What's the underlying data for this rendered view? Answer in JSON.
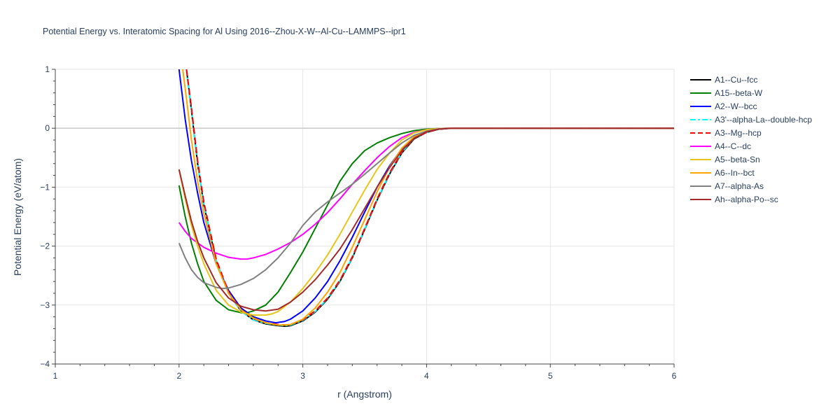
{
  "chart_data": {
    "type": "line",
    "title": "Potential Energy vs. Interatomic Spacing for Al Using 2016--Zhou-X-W--Al-Cu--LAMMPS--ipr1",
    "xlabel": "r (Angstrom)",
    "ylabel": "Potential Energy (eV/atom)",
    "xlim": [
      1,
      6
    ],
    "ylim": [
      -4,
      1
    ],
    "xticks": [
      "1",
      "2",
      "3",
      "4",
      "5",
      "6"
    ],
    "yticks": [
      "1",
      "0",
      "−1",
      "−2",
      "−3",
      "−4"
    ],
    "grid": true,
    "legend_position": "right",
    "series": [
      {
        "name": "A1--Cu--fcc",
        "color": "#000000",
        "dash": "solid",
        "x": [
          2.06,
          2.1,
          2.15,
          2.2,
          2.3,
          2.4,
          2.5,
          2.6,
          2.7,
          2.8,
          2.86,
          2.9,
          3.0,
          3.1,
          3.2,
          3.3,
          3.4,
          3.5,
          3.6,
          3.7,
          3.8,
          3.9,
          4.0,
          4.1,
          4.2,
          5,
          6
        ],
        "y": [
          1.0,
          0.3,
          -0.6,
          -1.3,
          -2.25,
          -2.8,
          -3.1,
          -3.25,
          -3.32,
          -3.35,
          -3.36,
          -3.35,
          -3.27,
          -3.12,
          -2.9,
          -2.6,
          -2.2,
          -1.72,
          -1.22,
          -0.78,
          -0.42,
          -0.18,
          -0.07,
          -0.015,
          0,
          0,
          0
        ]
      },
      {
        "name": "A15--beta-W",
        "color": "#008000",
        "dash": "solid",
        "x": [
          2.0,
          2.05,
          2.1,
          2.15,
          2.2,
          2.3,
          2.4,
          2.5,
          2.55,
          2.6,
          2.7,
          2.8,
          2.9,
          3.0,
          3.1,
          3.2,
          3.3,
          3.4,
          3.5,
          3.6,
          3.7,
          3.8,
          3.9,
          4.0,
          4.1,
          4.2,
          5,
          6
        ],
        "y": [
          -0.97,
          -1.5,
          -1.95,
          -2.3,
          -2.6,
          -2.92,
          -3.08,
          -3.13,
          -3.13,
          -3.1,
          -3.0,
          -2.78,
          -2.45,
          -2.1,
          -1.7,
          -1.3,
          -0.9,
          -0.6,
          -0.38,
          -0.25,
          -0.16,
          -0.09,
          -0.04,
          -0.015,
          -0.005,
          0,
          0,
          0
        ]
      },
      {
        "name": "A2--W--bcc",
        "color": "#0000ff",
        "dash": "solid",
        "x": [
          2.0,
          2.05,
          2.1,
          2.15,
          2.2,
          2.3,
          2.4,
          2.5,
          2.6,
          2.7,
          2.78,
          2.85,
          2.9,
          3.0,
          3.1,
          3.2,
          3.3,
          3.4,
          3.5,
          3.6,
          3.7,
          3.8,
          3.9,
          4.0,
          4.1,
          4.2,
          5,
          6
        ],
        "y": [
          1.0,
          0.15,
          -0.55,
          -1.1,
          -1.6,
          -2.3,
          -2.75,
          -3.05,
          -3.2,
          -3.27,
          -3.3,
          -3.28,
          -3.24,
          -3.1,
          -2.88,
          -2.6,
          -2.25,
          -1.85,
          -1.42,
          -1.0,
          -0.64,
          -0.35,
          -0.15,
          -0.06,
          -0.015,
          0,
          0,
          0
        ]
      },
      {
        "name": "A3'--alpha-La--double-hcp",
        "color": "#00ffff",
        "dash": "dashdot",
        "x": [
          2.06,
          2.1,
          2.15,
          2.2,
          2.3,
          2.4,
          2.5,
          2.6,
          2.7,
          2.8,
          2.86,
          2.9,
          3.0,
          3.1,
          3.2,
          3.3,
          3.4,
          3.5,
          3.6,
          3.7,
          3.8,
          3.9,
          4.0,
          4.1,
          4.2,
          5,
          6
        ],
        "y": [
          1.0,
          0.3,
          -0.6,
          -1.3,
          -2.25,
          -2.8,
          -3.1,
          -3.25,
          -3.31,
          -3.34,
          -3.35,
          -3.34,
          -3.26,
          -3.11,
          -2.89,
          -2.59,
          -2.19,
          -1.71,
          -1.21,
          -0.77,
          -0.41,
          -0.17,
          -0.07,
          -0.015,
          0,
          0,
          0
        ]
      },
      {
        "name": "A3--Mg--hcp",
        "color": "#ff0000",
        "dash": "dash",
        "x": [
          2.06,
          2.1,
          2.15,
          2.2,
          2.3,
          2.4,
          2.5,
          2.6,
          2.7,
          2.8,
          2.86,
          2.9,
          3.0,
          3.1,
          3.2,
          3.3,
          3.4,
          3.5,
          3.6,
          3.7,
          3.8,
          3.9,
          4.0,
          4.1,
          4.2,
          5,
          6
        ],
        "y": [
          1.0,
          0.35,
          -0.55,
          -1.25,
          -2.22,
          -2.78,
          -3.08,
          -3.23,
          -3.3,
          -3.33,
          -3.34,
          -3.33,
          -3.25,
          -3.1,
          -2.88,
          -2.58,
          -2.18,
          -1.7,
          -1.2,
          -0.76,
          -0.4,
          -0.17,
          -0.07,
          -0.015,
          0,
          0,
          0
        ]
      },
      {
        "name": "A4--C--dc",
        "color": "#ff00ff",
        "dash": "solid",
        "x": [
          2.0,
          2.05,
          2.1,
          2.2,
          2.3,
          2.4,
          2.5,
          2.55,
          2.6,
          2.7,
          2.8,
          2.9,
          3.0,
          3.1,
          3.2,
          3.3,
          3.4,
          3.5,
          3.6,
          3.7,
          3.8,
          3.9,
          4.0,
          4.1,
          4.2,
          5,
          6
        ],
        "y": [
          -1.6,
          -1.75,
          -1.87,
          -2.02,
          -2.12,
          -2.19,
          -2.22,
          -2.22,
          -2.2,
          -2.14,
          -2.05,
          -1.94,
          -1.8,
          -1.63,
          -1.43,
          -1.2,
          -0.95,
          -0.72,
          -0.5,
          -0.31,
          -0.16,
          -0.07,
          -0.025,
          -0.005,
          0,
          0,
          0
        ]
      },
      {
        "name": "A5--beta-Sn",
        "color": "#e6c619",
        "dash": "solid",
        "x": [
          2.0,
          2.05,
          2.1,
          2.15,
          2.2,
          2.3,
          2.4,
          2.5,
          2.6,
          2.7,
          2.75,
          2.8,
          2.9,
          3.0,
          3.1,
          3.2,
          3.3,
          3.4,
          3.5,
          3.6,
          3.7,
          3.8,
          3.9,
          4.0,
          4.1,
          4.2,
          5,
          6
        ],
        "y": [
          -0.7,
          -1.2,
          -1.65,
          -2.0,
          -2.3,
          -2.75,
          -3.0,
          -3.12,
          -3.17,
          -3.17,
          -3.15,
          -3.11,
          -2.95,
          -2.72,
          -2.45,
          -2.15,
          -1.8,
          -1.42,
          -1.05,
          -0.7,
          -0.42,
          -0.2,
          -0.08,
          -0.025,
          -0.005,
          0,
          0,
          0
        ]
      },
      {
        "name": "A6--In--bct",
        "color": "#ffa500",
        "dash": "solid",
        "x": [
          2.03,
          2.06,
          2.1,
          2.15,
          2.2,
          2.3,
          2.4,
          2.5,
          2.6,
          2.7,
          2.8,
          2.85,
          2.9,
          3.0,
          3.1,
          3.2,
          3.3,
          3.4,
          3.5,
          3.6,
          3.7,
          3.8,
          3.9,
          4.0,
          4.1,
          4.2,
          5,
          6
        ],
        "y": [
          1.0,
          0.5,
          -0.2,
          -0.9,
          -1.45,
          -2.3,
          -2.8,
          -3.08,
          -3.22,
          -3.3,
          -3.34,
          -3.34,
          -3.33,
          -3.24,
          -3.05,
          -2.78,
          -2.45,
          -2.02,
          -1.55,
          -1.08,
          -0.66,
          -0.34,
          -0.14,
          -0.05,
          -0.01,
          0,
          0,
          0
        ]
      },
      {
        "name": "A7--alpha-As",
        "color": "#808080",
        "dash": "solid",
        "x": [
          2.0,
          2.05,
          2.1,
          2.15,
          2.2,
          2.3,
          2.35,
          2.4,
          2.5,
          2.6,
          2.7,
          2.8,
          2.9,
          3.0,
          3.1,
          3.2,
          3.3,
          3.4,
          3.5,
          3.6,
          3.7,
          3.8,
          3.9,
          4.0,
          4.1,
          4.2,
          5,
          6
        ],
        "y": [
          -1.95,
          -2.2,
          -2.4,
          -2.53,
          -2.62,
          -2.7,
          -2.72,
          -2.71,
          -2.65,
          -2.55,
          -2.4,
          -2.2,
          -1.95,
          -1.65,
          -1.42,
          -1.25,
          -1.1,
          -0.95,
          -0.78,
          -0.6,
          -0.42,
          -0.25,
          -0.12,
          -0.05,
          -0.01,
          0,
          0,
          0
        ]
      },
      {
        "name": "Ah--alpha-Po--sc",
        "color": "#a52a2a",
        "dash": "solid",
        "x": [
          2.0,
          2.05,
          2.1,
          2.15,
          2.2,
          2.3,
          2.4,
          2.5,
          2.6,
          2.7,
          2.8,
          2.9,
          3.0,
          3.1,
          3.2,
          3.3,
          3.4,
          3.5,
          3.6,
          3.7,
          3.8,
          3.9,
          4.0,
          4.1,
          4.2,
          5,
          6
        ],
        "y": [
          -0.7,
          -1.15,
          -1.58,
          -1.92,
          -2.2,
          -2.62,
          -2.88,
          -3.02,
          -3.08,
          -3.1,
          -3.07,
          -2.95,
          -2.78,
          -2.57,
          -2.32,
          -2.05,
          -1.72,
          -1.36,
          -1.0,
          -0.67,
          -0.38,
          -0.17,
          -0.06,
          -0.015,
          0,
          0,
          0
        ]
      }
    ]
  }
}
